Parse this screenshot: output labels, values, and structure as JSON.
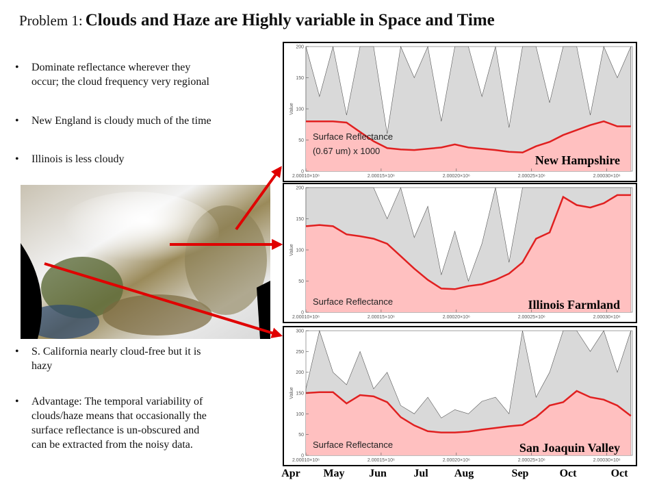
{
  "slide": {
    "title_prefix": "Problem 1:",
    "title_main": "Clouds and Haze are Highly variable in Space and Time",
    "bullets_top": [
      [
        "Dominate reflectance wherever they",
        "occur; the cloud frequency very regional"
      ],
      [
        "New England is cloudy much of the time"
      ],
      [
        "Illinois is less cloudy"
      ]
    ],
    "bullets_bottom": [
      [
        "S. California nearly cloud-free but it is",
        "hazy"
      ],
      [
        "Advantage: The temporal variability of",
        "clouds/haze means that occasionally the",
        "surface reflectance is un-obscured and",
        "can be extracted from the noisy data."
      ]
    ],
    "months": [
      "Apr",
      "May",
      "Jun",
      "Jul",
      "Aug",
      "Sep",
      "Oct",
      "Oct"
    ]
  },
  "chart_data": [
    {
      "type": "area",
      "title": "New Hampshire",
      "annotation": [
        "Surface Reflectance",
        "(0.67 um) x 1000"
      ],
      "ylabel": "Value",
      "x": [
        2000100,
        2000109,
        2000118,
        2000127,
        2000136,
        2000145,
        2000154,
        2000163,
        2000172,
        2000181,
        2000190,
        2000199,
        2000208,
        2000217,
        2000226,
        2000235,
        2000244,
        2000253,
        2000262,
        2000271,
        2000280,
        2000289,
        2000298,
        2000307,
        2000316
      ],
      "series": [
        {
          "color": "#d9d9d9",
          "values": [
            200,
            120,
            200,
            90,
            200,
            200,
            60,
            200,
            150,
            200,
            80,
            200,
            200,
            120,
            200,
            70,
            200,
            200,
            110,
            200,
            200,
            90,
            200,
            150,
            200
          ]
        },
        {
          "color": "#e02020",
          "values": [
            80,
            80,
            80,
            78,
            63,
            48,
            37,
            35,
            34,
            36,
            38,
            43,
            38,
            36,
            34,
            31,
            30,
            40,
            47,
            58,
            66,
            74,
            80,
            72,
            72
          ]
        }
      ],
      "xlim": [
        2000100,
        2000317
      ],
      "xticks": [
        {
          "value": 2000100,
          "label": "2.00010×10⁶"
        },
        {
          "value": 2000150,
          "label": "2.00015×10⁶"
        },
        {
          "value": 2000200,
          "label": "2.00020×10⁶"
        },
        {
          "value": 2000250,
          "label": "2.00025×10⁶"
        },
        {
          "value": 2000300,
          "label": "2.00030×10⁶"
        }
      ],
      "ylim": [
        0,
        200
      ],
      "yticks": [
        0,
        50,
        100,
        150,
        200
      ]
    },
    {
      "type": "area",
      "title": "Illinois Farmland",
      "annotation": [
        "Surface Reflectance"
      ],
      "ylabel": "Value",
      "x": [
        2000100,
        2000109,
        2000118,
        2000127,
        2000136,
        2000145,
        2000154,
        2000163,
        2000172,
        2000181,
        2000190,
        2000199,
        2000208,
        2000217,
        2000226,
        2000235,
        2000244,
        2000253,
        2000262,
        2000271,
        2000280,
        2000289,
        2000298,
        2000307,
        2000316
      ],
      "series": [
        {
          "color": "#d9d9d9",
          "values": [
            200,
            200,
            200,
            200,
            200,
            200,
            150,
            200,
            120,
            170,
            60,
            130,
            50,
            110,
            200,
            80,
            200,
            200,
            200,
            200,
            200,
            200,
            200,
            200,
            200
          ]
        },
        {
          "color": "#e02020",
          "values": [
            138,
            140,
            138,
            125,
            122,
            118,
            110,
            90,
            70,
            52,
            38,
            37,
            42,
            45,
            52,
            62,
            80,
            118,
            128,
            185,
            172,
            168,
            175,
            188,
            188
          ]
        }
      ],
      "xlim": [
        2000100,
        2000317
      ],
      "xticks": [
        {
          "value": 2000100,
          "label": "2.00010×10⁶"
        },
        {
          "value": 2000150,
          "label": "2.00015×10⁶"
        },
        {
          "value": 2000200,
          "label": "2.00020×10⁶"
        },
        {
          "value": 2000250,
          "label": "2.00025×10⁶"
        },
        {
          "value": 2000300,
          "label": "2.00030×10⁶"
        }
      ],
      "ylim": [
        0,
        200
      ],
      "yticks": [
        0,
        50,
        100,
        150,
        200
      ]
    },
    {
      "type": "area",
      "title": "San Joaquin Valley",
      "annotation": [
        "Surface Reflectance"
      ],
      "ylabel": "Value",
      "x": [
        2000100,
        2000109,
        2000118,
        2000127,
        2000136,
        2000145,
        2000154,
        2000163,
        2000172,
        2000181,
        2000190,
        2000199,
        2000208,
        2000217,
        2000226,
        2000235,
        2000244,
        2000253,
        2000262,
        2000271,
        2000280,
        2000289,
        2000298,
        2000307,
        2000316
      ],
      "series": [
        {
          "color": "#d9d9d9",
          "values": [
            160,
            300,
            200,
            170,
            250,
            160,
            200,
            120,
            100,
            140,
            90,
            110,
            100,
            130,
            140,
            100,
            300,
            140,
            200,
            300,
            300,
            250,
            300,
            200,
            300
          ]
        },
        {
          "color": "#e02020",
          "values": [
            150,
            152,
            152,
            125,
            145,
            142,
            128,
            92,
            72,
            58,
            55,
            55,
            57,
            62,
            66,
            70,
            73,
            92,
            120,
            128,
            155,
            140,
            134,
            120,
            95
          ]
        }
      ],
      "xlim": [
        2000100,
        2000317
      ],
      "xticks": [
        {
          "value": 2000100,
          "label": "2.00010×10⁶"
        },
        {
          "value": 2000150,
          "label": "2.00015×10⁶"
        },
        {
          "value": 2000200,
          "label": "2.00020×10⁶"
        },
        {
          "value": 2000250,
          "label": "2.00025×10⁶"
        },
        {
          "value": 2000300,
          "label": "2.00030×10⁶"
        }
      ],
      "ylim": [
        0,
        300
      ],
      "yticks": [
        0,
        50,
        100,
        150,
        200,
        250,
        300
      ]
    }
  ]
}
